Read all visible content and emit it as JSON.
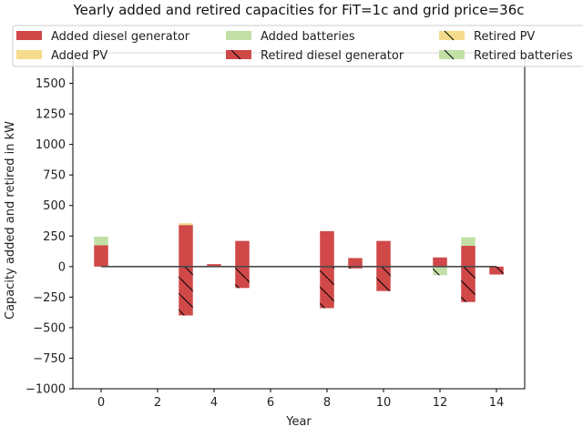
{
  "chart_data": {
    "type": "bar",
    "title": "Yearly added and retired capacities for FiT=1c and grid price=36c",
    "xlabel": "Year",
    "ylabel": "Capacity added and retired in kW",
    "xlim": [
      -1,
      15
    ],
    "ylim": [
      -1000,
      1750
    ],
    "x_ticks": [
      0,
      2,
      4,
      6,
      8,
      10,
      12,
      14
    ],
    "y_ticks": [
      -1000,
      -750,
      -500,
      -250,
      0,
      250,
      500,
      750,
      1000,
      1250,
      1500
    ],
    "x_tick_labels": [
      "0",
      "2",
      "4",
      "6",
      "8",
      "10",
      "12",
      "14"
    ],
    "y_tick_labels": [
      "−1000",
      "−750",
      "−500",
      "−250",
      "0",
      "250",
      "500",
      "750",
      "1000",
      "1250",
      "1500"
    ],
    "legend_position": "top",
    "colors": {
      "diesel": "#d04848",
      "pv": "#f5dc8c",
      "batteries": "#c2e0a6",
      "net_line": "#4a4a4a",
      "hatch": "#000000"
    },
    "years": [
      0,
      3,
      4,
      5,
      8,
      9,
      10,
      12,
      13,
      14
    ],
    "series": [
      {
        "name": "Added diesel generator",
        "key": "diesel",
        "kind": "added",
        "values": [
          175,
          340,
          20,
          210,
          290,
          70,
          210,
          75,
          170,
          0
        ]
      },
      {
        "name": "Added PV",
        "key": "pv",
        "kind": "added",
        "values": [
          0,
          15,
          0,
          0,
          0,
          0,
          0,
          0,
          0,
          0
        ]
      },
      {
        "name": "Added batteries",
        "key": "batteries",
        "kind": "added",
        "values": [
          70,
          0,
          0,
          0,
          0,
          0,
          0,
          0,
          70,
          0
        ]
      },
      {
        "name": "Retired diesel generator",
        "key": "diesel",
        "kind": "retired",
        "values": [
          0,
          -400,
          0,
          -175,
          -340,
          -15,
          -200,
          0,
          -290,
          -65
        ]
      },
      {
        "name": "Retired PV",
        "key": "pv",
        "kind": "retired",
        "values": [
          0,
          0,
          0,
          0,
          0,
          0,
          0,
          0,
          0,
          0
        ]
      },
      {
        "name": "Retired batteries",
        "key": "batteries",
        "kind": "retired",
        "values": [
          0,
          0,
          0,
          0,
          0,
          0,
          0,
          -70,
          0,
          0
        ]
      }
    ],
    "net_line": {
      "x": [
        0,
        14
      ],
      "values": [
        0,
        0
      ]
    }
  }
}
